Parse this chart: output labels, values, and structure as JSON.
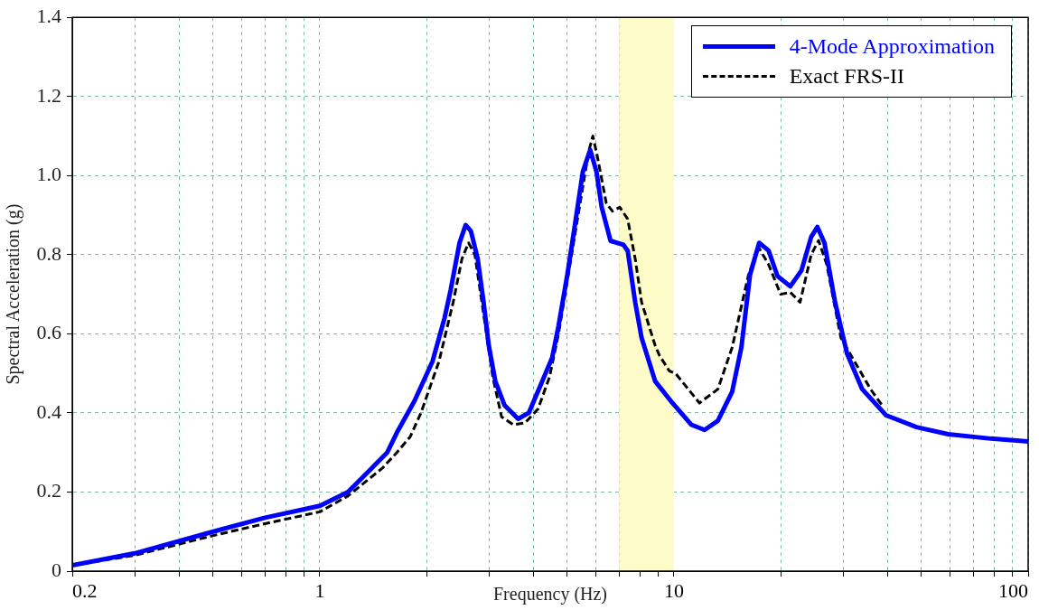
{
  "chart_data": {
    "type": "line",
    "xlabel": "Frequency (Hz)",
    "ylabel": "Spectral Acceleration (g)",
    "log": "x",
    "xlim": [
      0.2,
      100
    ],
    "ylim": [
      0,
      1.4
    ],
    "xticks": [
      0.2,
      {
        "value": 0.3,
        "label": null
      },
      {
        "value": 0.4,
        "label": null
      },
      {
        "value": 0.5,
        "label": null
      },
      {
        "value": 0.6,
        "label": null
      },
      {
        "value": 0.7,
        "label": null
      },
      {
        "value": 0.8,
        "label": null
      },
      {
        "value": 0.9,
        "label": null
      },
      1,
      {
        "value": 2,
        "label": null
      },
      {
        "value": 3,
        "label": null
      },
      {
        "value": 4,
        "label": null
      },
      {
        "value": 5,
        "label": null
      },
      {
        "value": 6,
        "label": null
      },
      {
        "value": 7,
        "label": null
      },
      {
        "value": 8,
        "label": null
      },
      {
        "value": 9,
        "label": null
      },
      10,
      {
        "value": 20,
        "label": null
      },
      {
        "value": 30,
        "label": null
      },
      {
        "value": 40,
        "label": null
      },
      {
        "value": 50,
        "label": null
      },
      {
        "value": 60,
        "label": null
      },
      {
        "value": 70,
        "label": null
      },
      {
        "value": 80,
        "label": null
      },
      {
        "value": 90,
        "label": null
      },
      100
    ],
    "yticks": [
      0,
      0.2,
      0.4,
      0.6,
      0.8,
      {
        "value": 1,
        "label": "1.0"
      },
      1.2,
      1.4
    ],
    "grid": true,
    "legend": "top right",
    "marker": "none",
    "bands": [
      {
        "axis": "x",
        "from": 7,
        "to": 10,
        "color": "#fdfbc8"
      }
    ],
    "series": [
      {
        "name": "4-Mode Approximation",
        "color": "#0000ff",
        "line_style": "solid",
        "x": [
          0.2,
          0.3,
          0.5,
          0.7,
          1,
          1.2,
          1.4,
          1.55,
          1.65,
          1.85,
          2.08,
          2.25,
          2.34,
          2.48,
          2.58,
          2.67,
          2.79,
          2.9,
          3.0,
          3.13,
          3.32,
          3.63,
          3.89,
          4.2,
          4.53,
          4.72,
          5.0,
          5.2,
          5.53,
          5.8,
          6.04,
          6.25,
          6.62,
          7.2,
          7.4,
          7.77,
          8.1,
          8.85,
          9.9,
          11.2,
          12.2,
          13.3,
          14.6,
          15.5,
          16.4,
          17.4,
          18.5,
          19.6,
          21.3,
          22.9,
          24.4,
          25.4,
          26.6,
          28.5,
          30.8,
          34,
          39.7,
          48.4,
          59.5,
          78.5,
          100
        ],
        "values": [
          0.015,
          0.045,
          0.1,
          0.135,
          0.165,
          0.2,
          0.26,
          0.3,
          0.35,
          0.43,
          0.53,
          0.64,
          0.71,
          0.83,
          0.875,
          0.86,
          0.79,
          0.68,
          0.57,
          0.48,
          0.42,
          0.385,
          0.4,
          0.47,
          0.54,
          0.62,
          0.75,
          0.85,
          1.01,
          1.065,
          1.01,
          0.92,
          0.835,
          0.825,
          0.81,
          0.68,
          0.59,
          0.48,
          0.425,
          0.37,
          0.357,
          0.38,
          0.454,
          0.566,
          0.75,
          0.83,
          0.81,
          0.746,
          0.72,
          0.76,
          0.845,
          0.87,
          0.83,
          0.68,
          0.55,
          0.46,
          0.394,
          0.364,
          0.346,
          0.335,
          0.328
        ]
      },
      {
        "name": "Exact FRS-II",
        "color": "#000000",
        "line_style": "dashed",
        "x": [
          0.2,
          0.3,
          0.5,
          0.7,
          1,
          1.2,
          1.5,
          1.65,
          1.8,
          1.93,
          2.17,
          2.38,
          2.52,
          2.63,
          2.74,
          2.9,
          3.08,
          3.26,
          3.52,
          3.8,
          4.13,
          4.45,
          4.72,
          5.74,
          5.9,
          6.07,
          6.44,
          6.7,
          7.03,
          7.4,
          7.77,
          8.1,
          8.85,
          9.1,
          9.7,
          10.1,
          11.8,
          13.3,
          14.6,
          16.2,
          17.3,
          18.5,
          20,
          21.3,
          22.7,
          24.4,
          25.6,
          27,
          29.6,
          32,
          35.9,
          39
        ],
        "values": [
          0.015,
          0.04,
          0.09,
          0.12,
          0.15,
          0.19,
          0.26,
          0.3,
          0.34,
          0.4,
          0.53,
          0.68,
          0.79,
          0.83,
          0.8,
          0.65,
          0.49,
          0.39,
          0.37,
          0.375,
          0.41,
          0.49,
          0.6,
          1.06,
          1.1,
          1.05,
          0.93,
          0.91,
          0.92,
          0.89,
          0.79,
          0.68,
          0.57,
          0.545,
          0.506,
          0.5,
          0.425,
          0.46,
          0.566,
          0.746,
          0.82,
          0.775,
          0.7,
          0.705,
          0.68,
          0.8,
          0.836,
          0.775,
          0.59,
          0.537,
          0.46,
          0.415
        ]
      }
    ]
  }
}
